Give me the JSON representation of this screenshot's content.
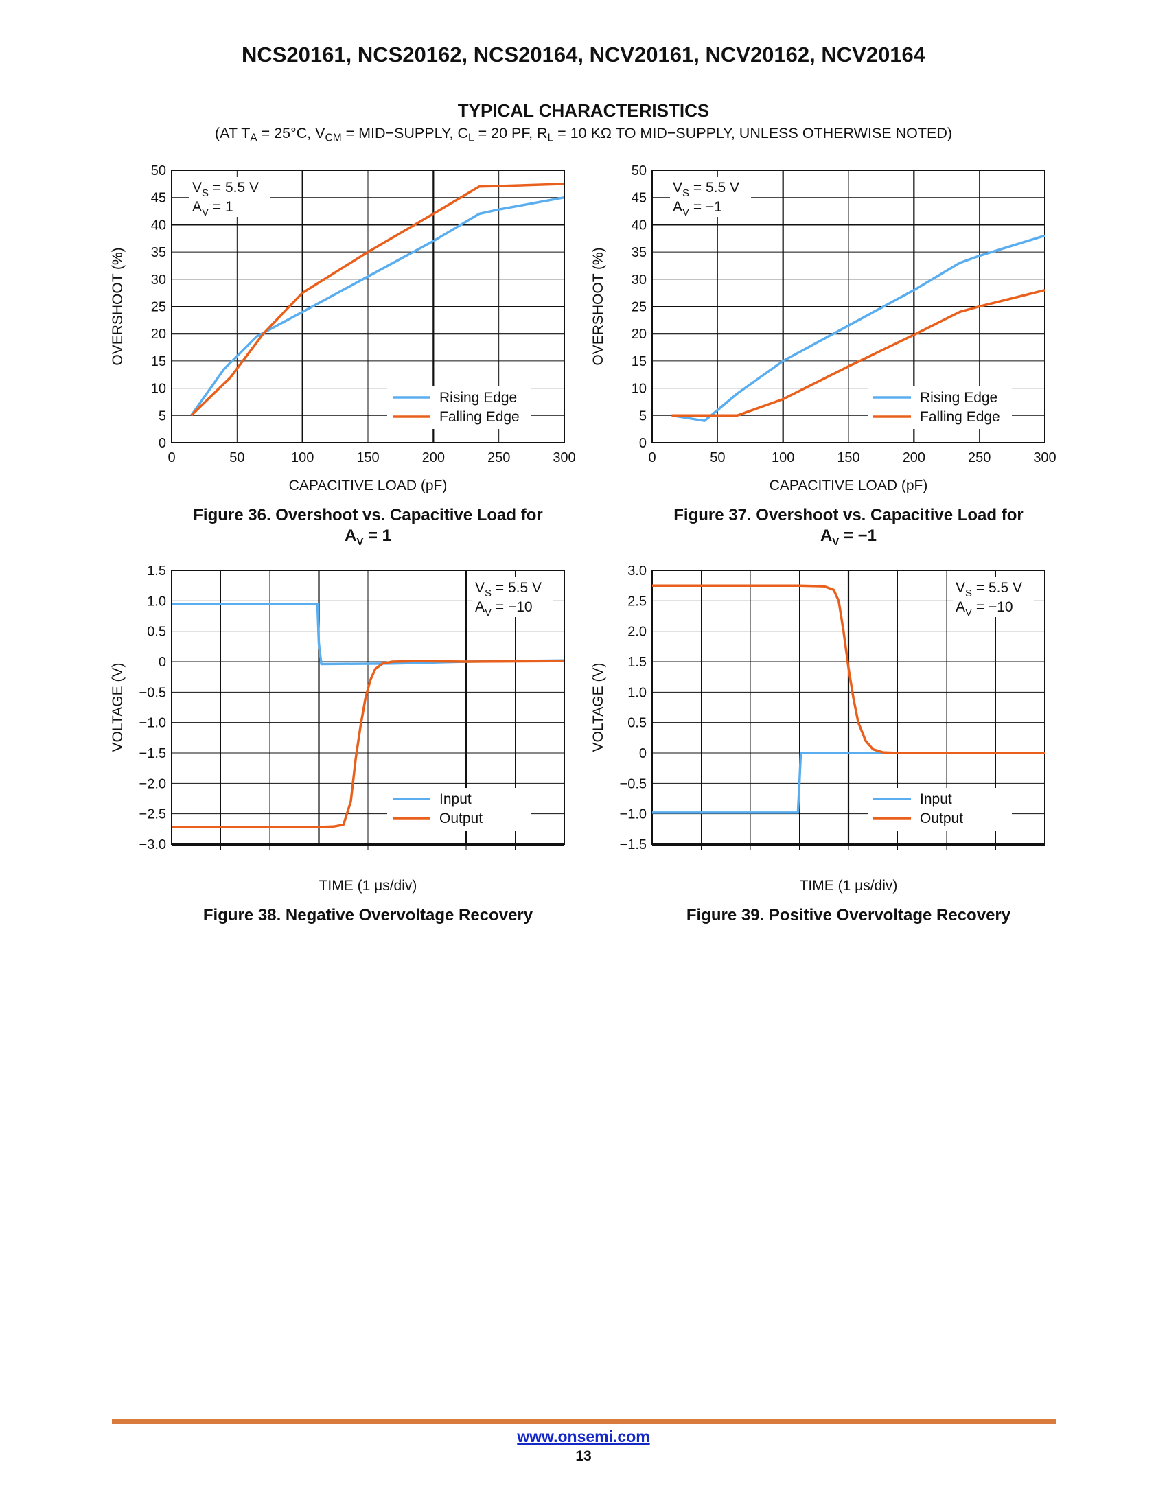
{
  "header": {
    "doc_title": "NCS20161, NCS20162, NCS20164, NCV20161, NCV20162, NCV20164",
    "section_title": "TYPICAL CHARACTERISTICS",
    "conditions": {
      "p1": "(AT T",
      "s1": "A",
      "p2": " = 25°C, V",
      "s2": "CM",
      "p3": " = MID−SUPPLY, C",
      "s3": "L",
      "p4": " = 20 PF, R",
      "s4": "L",
      "p5": " = 10 KΩ TO MID−SUPPLY, UNLESS OTHERWISE NOTED)"
    }
  },
  "colors": {
    "rising_input": "#5aaeef",
    "falling_output": "#e8601c",
    "footer_rule": "#d97b3c",
    "link": "#1428c8"
  },
  "chart_data": [
    {
      "type": "line",
      "caption": [
        "Figure 36. Overshoot vs. Capacitive Load for",
        "A",
        "V",
        " = 1"
      ],
      "xlabel": "CAPACITIVE LOAD (pF)",
      "ylabel": "OVERSHOOT (%)",
      "xlim": [
        0,
        300
      ],
      "ylim": [
        0,
        50
      ],
      "xticks": [
        0,
        50,
        100,
        150,
        200,
        250,
        300
      ],
      "xtick_labels": [
        "0",
        "50",
        "100",
        "150",
        "200",
        "250",
        "300"
      ],
      "yticks": [
        0,
        5,
        10,
        15,
        20,
        25,
        30,
        35,
        40,
        45,
        50
      ],
      "ytick_labels": [
        "0",
        "5",
        "10",
        "15",
        "20",
        "25",
        "30",
        "35",
        "40",
        "45",
        "50"
      ],
      "annotation": [
        [
          "V",
          "S",
          " = 5.5 V"
        ],
        [
          "A",
          "V",
          " = 1"
        ]
      ],
      "annotation_position": "top-left",
      "legend_position": "bottom-right",
      "grid": true,
      "series": [
        {
          "name": "Rising Edge",
          "color": "#5aaeef",
          "x": [
            15,
            40,
            65,
            100,
            150,
            200,
            235,
            250,
            300
          ],
          "y": [
            5,
            13.5,
            19.5,
            24,
            30.5,
            37,
            42,
            42.8,
            45
          ]
        },
        {
          "name": "Falling Edge",
          "color": "#e8601c",
          "x": [
            15,
            45,
            70,
            100,
            150,
            200,
            235,
            250,
            300
          ],
          "y": [
            5,
            12,
            20,
            27.5,
            35,
            42,
            47,
            47.1,
            47.5
          ]
        }
      ]
    },
    {
      "type": "line",
      "caption": [
        "Figure 37. Overshoot vs. Capacitive Load for",
        "A",
        "V",
        " = −1"
      ],
      "xlabel": "CAPACITIVE LOAD (pF)",
      "ylabel": "OVERSHOOT (%)",
      "xlim": [
        0,
        300
      ],
      "ylim": [
        0,
        50
      ],
      "xticks": [
        0,
        50,
        100,
        150,
        200,
        250,
        300
      ],
      "xtick_labels": [
        "0",
        "50",
        "100",
        "150",
        "200",
        "250",
        "300"
      ],
      "yticks": [
        0,
        5,
        10,
        15,
        20,
        25,
        30,
        35,
        40,
        45,
        50
      ],
      "ytick_labels": [
        "0",
        "5",
        "10",
        "15",
        "20",
        "25",
        "30",
        "35",
        "40",
        "45",
        "50"
      ],
      "annotation": [
        [
          "V",
          "S",
          " = 5.5 V"
        ],
        [
          "A",
          "V",
          " = −1"
        ]
      ],
      "annotation_position": "top-left",
      "legend_position": "bottom-right",
      "grid": true,
      "series": [
        {
          "name": "Rising Edge",
          "color": "#5aaeef",
          "x": [
            15,
            40,
            65,
            100,
            150,
            200,
            235,
            250,
            300
          ],
          "y": [
            5,
            4,
            9,
            15,
            21.5,
            28,
            33,
            34.3,
            38
          ]
        },
        {
          "name": "Falling Edge",
          "color": "#e8601c",
          "x": [
            15,
            40,
            65,
            100,
            150,
            200,
            235,
            250,
            300
          ],
          "y": [
            5,
            5,
            5,
            8,
            14,
            19.8,
            24,
            25,
            28
          ]
        }
      ]
    },
    {
      "type": "line",
      "caption": [
        "Figure 38. Negative Overvoltage Recovery"
      ],
      "xlabel_parts": [
        "TIME (1 ",
        "μ",
        "s/div)"
      ],
      "ylabel": "VOLTAGE (V)",
      "xlim": [
        0,
        8
      ],
      "ylim": [
        -3.0,
        1.5
      ],
      "yticks": [
        -3.0,
        -2.5,
        -2.0,
        -1.5,
        -1.0,
        -0.5,
        0,
        0.5,
        1.0,
        1.5
      ],
      "ytick_labels": [
        "−3.0",
        "−2.5",
        "−2.0",
        "−1.5",
        "−1.0",
        "−0.5",
        "0",
        "0.5",
        "1.0",
        "1.5"
      ],
      "x_major_every": 3,
      "annotation": [
        [
          "V",
          "S",
          " = 5.5 V"
        ],
        [
          "A",
          "V",
          " = −10"
        ]
      ],
      "annotation_position": "top-right",
      "legend_position": "bottom-right",
      "grid": true,
      "series": [
        {
          "name": "Input",
          "color": "#5aaeef",
          "x": [
            0,
            2.97,
            3.0,
            3.05,
            4.5,
            6.0,
            8.0
          ],
          "y": [
            0.95,
            0.95,
            0.3,
            -0.04,
            -0.03,
            0.0,
            0.02
          ]
        },
        {
          "name": "Output",
          "color": "#e8601c",
          "x": [
            0,
            2.9,
            3.3,
            3.5,
            3.65,
            3.75,
            3.85,
            3.95,
            4.05,
            4.15,
            4.3,
            4.5,
            5.0,
            6.0,
            8.0
          ],
          "y": [
            -2.72,
            -2.72,
            -2.71,
            -2.68,
            -2.3,
            -1.6,
            -1.05,
            -0.6,
            -0.3,
            -0.12,
            -0.03,
            0.0,
            0.01,
            0.0,
            0.01
          ]
        }
      ]
    },
    {
      "type": "line",
      "caption": [
        "Figure 39. Positive Overvoltage Recovery"
      ],
      "xlabel_parts": [
        "TIME (1 ",
        "μ",
        "s/div)"
      ],
      "ylabel": "VOLTAGE (V)",
      "xlim": [
        0,
        8
      ],
      "ylim": [
        -1.5,
        3.0
      ],
      "yticks": [
        -1.5,
        -1.0,
        -0.5,
        0,
        0.5,
        1.0,
        1.5,
        2.0,
        2.5,
        3.0
      ],
      "ytick_labels": [
        "−1.5",
        "−1.0",
        "−0.5",
        "0",
        "0.5",
        "1.0",
        "1.5",
        "2.0",
        "2.5",
        "3.0"
      ],
      "x_major_every": 4,
      "annotation": [
        [
          "V",
          "S",
          " = 5.5 V"
        ],
        [
          "A",
          "V",
          " = −10"
        ]
      ],
      "annotation_position": "top-right",
      "legend_position": "bottom-right",
      "grid": true,
      "series": [
        {
          "name": "Input",
          "color": "#5aaeef",
          "x": [
            0,
            2.97,
            3.0,
            3.03,
            6.0,
            8.0
          ],
          "y": [
            -0.98,
            -0.98,
            -0.5,
            0.0,
            0.0,
            0.0
          ]
        },
        {
          "name": "Output",
          "color": "#e8601c",
          "x": [
            0,
            3.0,
            3.5,
            3.7,
            3.8,
            3.9,
            4.0,
            4.1,
            4.2,
            4.35,
            4.5,
            4.7,
            5.0,
            6.0,
            8.0
          ],
          "y": [
            2.75,
            2.75,
            2.74,
            2.68,
            2.5,
            2.0,
            1.4,
            0.9,
            0.5,
            0.2,
            0.06,
            0.01,
            0.0,
            0.0,
            0.0
          ]
        }
      ]
    }
  ],
  "footer": {
    "url": "www.onsemi.com",
    "page_number": "13"
  }
}
